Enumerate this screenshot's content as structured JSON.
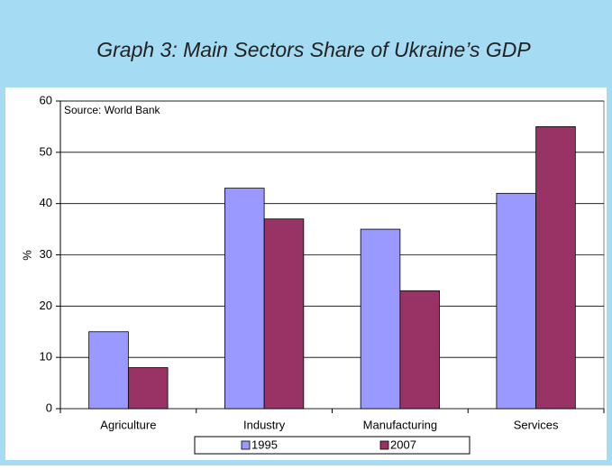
{
  "chart_data": {
    "type": "bar",
    "title": "Graph 3:  Main Sectors Share of Ukraine’s GDP",
    "annotation": "Source: World Bank",
    "y_label": "%",
    "categories": [
      "Agriculture",
      "Industry",
      "Manufacturing",
      "Services"
    ],
    "series": [
      {
        "name": "1995",
        "color": "#9999ff",
        "values": [
          15,
          43,
          35,
          42
        ]
      },
      {
        "name": "2007",
        "color": "#993366",
        "values": [
          8,
          37,
          23,
          55
        ]
      }
    ],
    "ylim": [
      0,
      60
    ],
    "yticks": [
      0,
      10,
      20,
      30,
      40,
      50,
      60
    ],
    "grid": true
  }
}
